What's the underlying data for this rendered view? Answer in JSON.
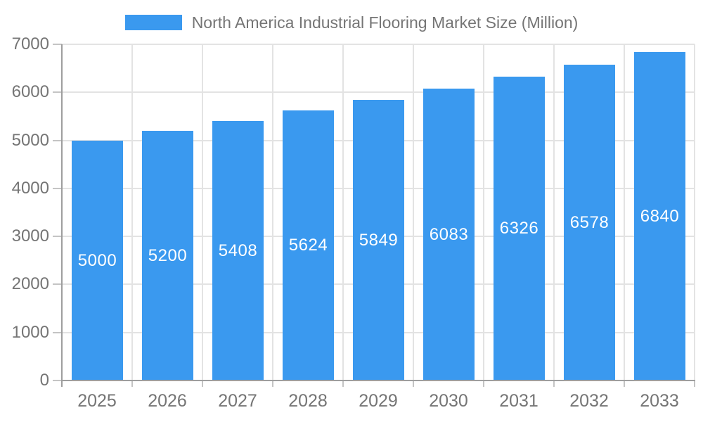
{
  "chart_data": {
    "type": "bar",
    "title": "North America Industrial Flooring Market Size (Million)",
    "legend": [
      "North America Industrial Flooring Market Size (Million)"
    ],
    "legend_position": "top",
    "categories": [
      "2025",
      "2026",
      "2027",
      "2028",
      "2029",
      "2030",
      "2031",
      "2032",
      "2033"
    ],
    "values": [
      5000,
      5200,
      5408,
      5624,
      5849,
      6083,
      6326,
      6578,
      6840
    ],
    "value_labels": [
      "5000",
      "5200",
      "5408",
      "5624",
      "5849",
      "6083",
      "6326",
      "6578",
      "6840"
    ],
    "xlabel": "",
    "ylabel": "",
    "ylim": [
      0,
      7000
    ],
    "yticks": [
      0,
      1000,
      2000,
      3000,
      4000,
      5000,
      6000,
      7000
    ],
    "grid": true,
    "colors": {
      "bar": "#3a99ef",
      "bar_value_text": "#ffffff",
      "axis_text": "#757575",
      "legend_text": "#757575",
      "gridline": "#e3e3e3",
      "axis_line": "#9e9e9e",
      "tick_mark": "#c4c4c4",
      "background": "#ffffff"
    }
  }
}
